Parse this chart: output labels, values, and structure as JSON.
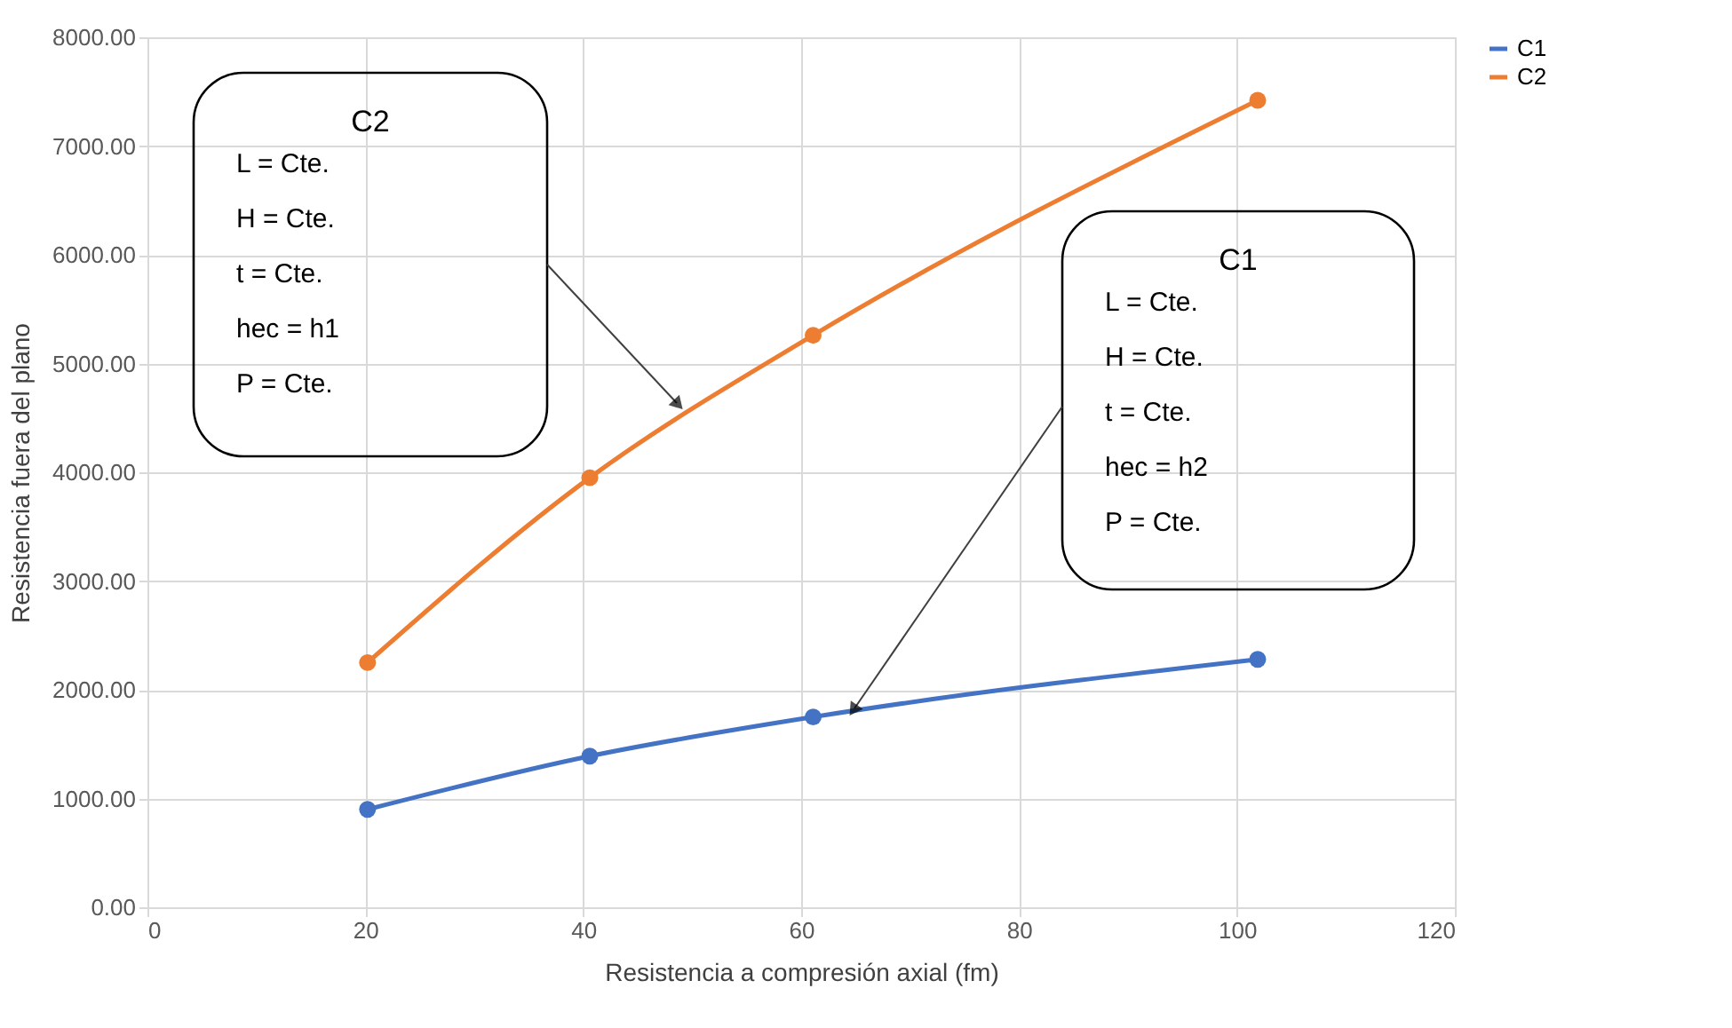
{
  "chart_data": {
    "type": "line",
    "xlabel": "Resistencia a compresión axial (fm)",
    "ylabel": "Resistencia fuera del plano",
    "series": [
      {
        "name": "C1",
        "color": "#4472c4",
        "x": [
          20.2,
          40.6,
          61.1,
          101.9
        ],
        "values": [
          900,
          1390,
          1750,
          2280
        ]
      },
      {
        "name": "C2",
        "color": "#ed7d31",
        "x": [
          20.2,
          40.6,
          61.1,
          101.9
        ],
        "values": [
          2250,
          3950,
          5260,
          7420
        ]
      }
    ],
    "xlim": [
      0,
      120
    ],
    "xticks": [
      0,
      20,
      40,
      60,
      80,
      100,
      120
    ],
    "ylim": [
      0,
      8000
    ],
    "yticks": [
      {
        "value": 0,
        "label": "0.00"
      },
      {
        "value": 1000,
        "label": "1000.00"
      },
      {
        "value": 2000,
        "label": "2000.00"
      },
      {
        "value": 3000,
        "label": "3000.00"
      },
      {
        "value": 4000,
        "label": "4000.00"
      },
      {
        "value": 5000,
        "label": "5000.00"
      },
      {
        "value": 6000,
        "label": "6000.00"
      },
      {
        "value": 7000,
        "label": "7000.00"
      },
      {
        "value": 8000,
        "label": "8000.00"
      }
    ],
    "annotations": [
      "C2\nL = Cte.\nH = Cte.\nt = Cte.\nhec = h1\nP = Cte.",
      "C1\nL = Cte.\nH = Cte.\nt = Cte.\nhec = h2\nP = Cte."
    ],
    "grid": true,
    "legend": "right",
    "marker": "circle",
    "line_style": "solid"
  }
}
